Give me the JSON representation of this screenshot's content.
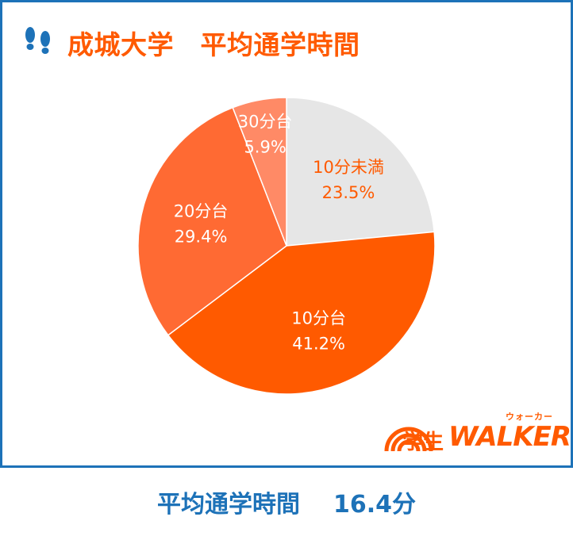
{
  "header": {
    "icon": "footprints-icon",
    "title": "成城大学　平均通学時間"
  },
  "chart_data": {
    "type": "pie",
    "title": "成城大学　平均通学時間",
    "start_angle_deg": 0,
    "direction": "clockwise",
    "slices": [
      {
        "label": "10分未満",
        "value": 23.5,
        "display": "23.5%",
        "color": "#e6e6e6",
        "text_color": "#ff5a00"
      },
      {
        "label": "10分台",
        "value": 41.2,
        "display": "41.2%",
        "color": "#ff5a00",
        "text_color": "#ffffff"
      },
      {
        "label": "20分台",
        "value": 29.4,
        "display": "29.4%",
        "color": "#ff6a33",
        "text_color": "#ffffff"
      },
      {
        "label": "30分台",
        "value": 5.9,
        "display": "5.9%",
        "color": "#ff8a66",
        "text_color": "#ffffff"
      }
    ]
  },
  "logo": {
    "kana": "ウォーカー",
    "kanji": "学生",
    "word": "WALKER"
  },
  "footer": {
    "label": "平均通学時間",
    "value": "16.4分"
  },
  "colors": {
    "accent": "#ff5a00",
    "frame": "#1d72b8"
  }
}
